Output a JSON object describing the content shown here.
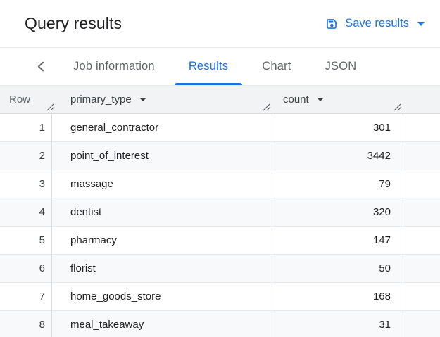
{
  "titlebar": {
    "title": "Query results",
    "save_button": {
      "label": "Save results",
      "icon": "save-icon",
      "caret": "caret-down"
    }
  },
  "tabbar": {
    "back_icon": "chevron-left",
    "tabs": [
      {
        "id": "job-information",
        "label": "Job information",
        "active": false
      },
      {
        "id": "results",
        "label": "Results",
        "active": true
      },
      {
        "id": "chart",
        "label": "Chart",
        "active": false
      },
      {
        "id": "json",
        "label": "JSON",
        "active": false
      }
    ]
  },
  "table": {
    "columns": [
      {
        "id": "row",
        "label": "Row",
        "sortable": false,
        "resizable": true
      },
      {
        "id": "primary_type",
        "label": "primary_type",
        "sortable": true,
        "resizable": true
      },
      {
        "id": "count",
        "label": "count",
        "sortable": true,
        "resizable": true
      }
    ],
    "rows": [
      {
        "row": 1,
        "primary_type": "general_contractor",
        "count": 301
      },
      {
        "row": 2,
        "primary_type": "point_of_interest",
        "count": 3442
      },
      {
        "row": 3,
        "primary_type": "massage",
        "count": 79
      },
      {
        "row": 4,
        "primary_type": "dentist",
        "count": 320
      },
      {
        "row": 5,
        "primary_type": "pharmacy",
        "count": 147
      },
      {
        "row": 6,
        "primary_type": "florist",
        "count": 50
      },
      {
        "row": 7,
        "primary_type": "home_goods_store",
        "count": 168
      },
      {
        "row": 8,
        "primary_type": "meal_takeaway",
        "count": 31
      }
    ]
  },
  "colors": {
    "accent_blue": "#1a73e8",
    "header_bg": "#f1f3f4",
    "row_stripe": "#f8f9fa",
    "grid_line": "#dadce0",
    "inactive_tab_text": "#5f6368",
    "body_text": "#202124"
  }
}
